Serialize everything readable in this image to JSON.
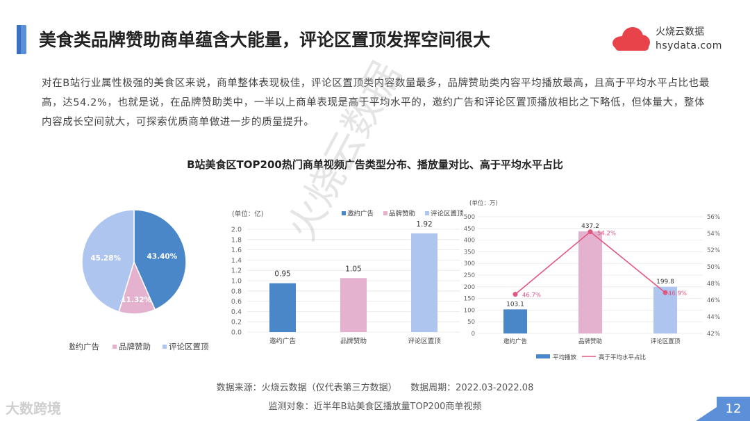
{
  "header": {
    "title": "美食类品牌赞助商单蕴含大能量，评论区置顶发挥空间很大",
    "logo_name": "火烧云数据",
    "logo_domain": "hsydata.com"
  },
  "intro_text": "对在B站行业属性极强的美食区来说，商单整体表现极佳，评论区置顶类内容数量最多，品牌赞助类内容平均播放最高，且高于平均水平占比也最高，达54.2%，也就是说，在品牌赞助类中，一半以上商单表现是高于平均水平的，邀约广告和评论区置顶播放相比之下略低，但体量大，整体内容成长空间就大，可探索优质商单做进一步的质量提升。",
  "chart_title": "B站美食区TOP200热门商单视频广告类型分布、播放量对比、高于平均水平占比",
  "colors": {
    "blue": "#4a87c8",
    "pink": "#e4b2cf",
    "lightblue": "#aec5ef",
    "line": "#e0577f"
  },
  "chart_data": [
    {
      "type": "pie",
      "labels": [
        "邀约广告",
        "品牌赞助",
        "评论区置顶"
      ],
      "values": [
        43.4,
        11.32,
        45.28
      ],
      "value_labels": [
        "43.40%",
        "11.32%",
        "45.28%"
      ],
      "legend_position": "bottom"
    },
    {
      "type": "bar",
      "unit_label": "(单位：亿)",
      "categories": [
        "邀约广告",
        "品牌赞助",
        "评论区置顶"
      ],
      "values": [
        0.95,
        1.05,
        1.92
      ],
      "value_labels": [
        "0.95",
        "1.05",
        "1.92"
      ],
      "ylim": [
        0,
        2.0
      ],
      "yticks": [
        "0.0",
        "0.2",
        "0.4",
        "0.6",
        "0.8",
        "1.0",
        "1.2",
        "1.4",
        "1.6",
        "1.8",
        "2.0"
      ],
      "legend": [
        "邀约广告",
        "品牌赞助",
        "评论区置顶"
      ],
      "legend_position": "top-right"
    },
    {
      "type": "bar+line",
      "unit_label": "(单位：万)",
      "categories": [
        "邀约广告",
        "品牌赞助",
        "评论区置顶"
      ],
      "series": [
        {
          "name": "平均播放",
          "kind": "bar",
          "values": [
            103.1,
            437.2,
            199.8
          ],
          "value_labels": [
            "103.1",
            "437.2",
            "199.8"
          ]
        },
        {
          "name": "高于平均水平占比",
          "kind": "line",
          "values": [
            46.7,
            54.2,
            46.9
          ],
          "value_labels": [
            "46.7%",
            "54.2%",
            "46.9%"
          ]
        }
      ],
      "ylim": [
        0,
        500
      ],
      "yticks": [
        "0",
        "50",
        "100",
        "150",
        "200",
        "250",
        "300",
        "350",
        "400",
        "450",
        "500"
      ],
      "y2lim": [
        42,
        56
      ],
      "y2ticks": [
        "42%",
        "44%",
        "46%",
        "48%",
        "50%",
        "52%",
        "54%",
        "56%"
      ],
      "legend_position": "bottom"
    }
  ],
  "footer": {
    "source": "数据来源：火烧云数据（仅代表第三方数据）　　数据周期：2022.03-2022.08",
    "monitor": "监测对象：近半年B站美食区播放量TOP200商单视频",
    "watermark": "大数跨境",
    "page_number": "12"
  },
  "diagonal_watermark": "火烧云数据"
}
